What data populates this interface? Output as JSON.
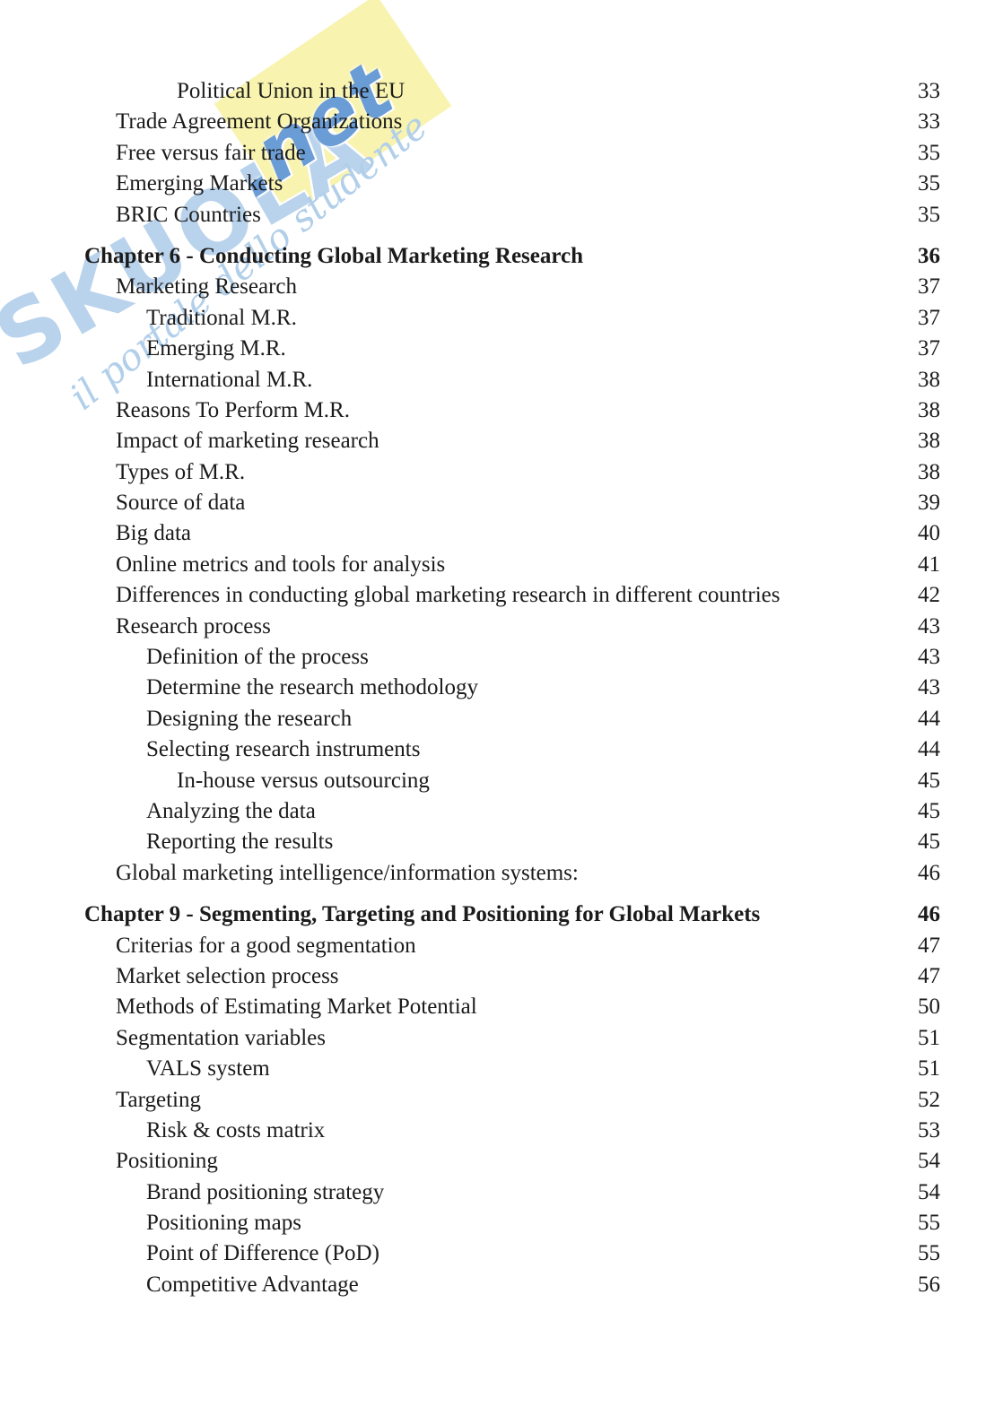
{
  "document": {
    "kind": "table-of-contents-page",
    "text_color": "#1b1b1b",
    "entries": [
      {
        "label": "Political Union in the EU",
        "page": "33",
        "level": 3,
        "chapter": false
      },
      {
        "label": "Trade Agreement Organizations",
        "page": "33",
        "level": 1,
        "chapter": false
      },
      {
        "label": "Free versus fair trade",
        "page": "35",
        "level": 1,
        "chapter": false
      },
      {
        "label": "Emerging Markets",
        "page": "35",
        "level": 1,
        "chapter": false
      },
      {
        "label": "BRIC Countries",
        "page": "35",
        "level": 1,
        "chapter": false
      },
      {
        "label": "Chapter 6 - Conducting Global Marketing Research",
        "page": "36",
        "level": 0,
        "chapter": true
      },
      {
        "label": "Marketing Research",
        "page": "37",
        "level": 1,
        "chapter": false
      },
      {
        "label": "Traditional M.R.",
        "page": "37",
        "level": 2,
        "chapter": false
      },
      {
        "label": "Emerging M.R.",
        "page": "37",
        "level": 2,
        "chapter": false
      },
      {
        "label": "International M.R.",
        "page": "38",
        "level": 2,
        "chapter": false
      },
      {
        "label": "Reasons To Perform M.R.",
        "page": "38",
        "level": 1,
        "chapter": false
      },
      {
        "label": "Impact of marketing research",
        "page": "38",
        "level": 1,
        "chapter": false
      },
      {
        "label": "Types of M.R.",
        "page": "38",
        "level": 1,
        "chapter": false
      },
      {
        "label": "Source of data",
        "page": "39",
        "level": 1,
        "chapter": false
      },
      {
        "label": "Big data",
        "page": "40",
        "level": 1,
        "chapter": false
      },
      {
        "label": "Online metrics and tools for analysis",
        "page": "41",
        "level": 1,
        "chapter": false
      },
      {
        "label": "Differences in conducting global marketing research in different countries",
        "page": "42",
        "level": 1,
        "chapter": false
      },
      {
        "label": "Research process",
        "page": "43",
        "level": 1,
        "chapter": false
      },
      {
        "label": "Definition of the process",
        "page": "43",
        "level": 2,
        "chapter": false
      },
      {
        "label": "Determine the research methodology",
        "page": "43",
        "level": 2,
        "chapter": false
      },
      {
        "label": "Designing the research",
        "page": "44",
        "level": 2,
        "chapter": false
      },
      {
        "label": "Selecting research instruments",
        "page": "44",
        "level": 2,
        "chapter": false
      },
      {
        "label": "In-house versus outsourcing",
        "page": "45",
        "level": 3,
        "chapter": false
      },
      {
        "label": "Analyzing the data",
        "page": "45",
        "level": 2,
        "chapter": false
      },
      {
        "label": "Reporting the results",
        "page": "45",
        "level": 2,
        "chapter": false
      },
      {
        "label": "Global marketing intelligence/information systems:",
        "page": "46",
        "level": 1,
        "chapter": false
      },
      {
        "label": "Chapter 9 - Segmenting, Targeting and Positioning for Global Markets",
        "page": "46",
        "level": 0,
        "chapter": true
      },
      {
        "label": "Criterias for a good segmentation",
        "page": "47",
        "level": 1,
        "chapter": false
      },
      {
        "label": "Market selection process",
        "page": "47",
        "level": 1,
        "chapter": false
      },
      {
        "label": "Methods of Estimating Market Potential",
        "page": "50",
        "level": 1,
        "chapter": false
      },
      {
        "label": "Segmentation variables",
        "page": "51",
        "level": 1,
        "chapter": false
      },
      {
        "label": "VALS system",
        "page": "51",
        "level": 2,
        "chapter": false
      },
      {
        "label": "Targeting",
        "page": "52",
        "level": 1,
        "chapter": false
      },
      {
        "label": "Risk & costs matrix",
        "page": "53",
        "level": 2,
        "chapter": false
      },
      {
        "label": "Positioning",
        "page": "54",
        "level": 1,
        "chapter": false
      },
      {
        "label": "Brand positioning strategy",
        "page": "54",
        "level": 2,
        "chapter": false
      },
      {
        "label": "Positioning maps",
        "page": "55",
        "level": 2,
        "chapter": false
      },
      {
        "label": "Point of Difference (PoD)",
        "page": "55",
        "level": 2,
        "chapter": false
      },
      {
        "label": "Competitive Advantage",
        "page": "56",
        "level": 2,
        "chapter": false
      }
    ]
  },
  "watermark": {
    "brand": "SKUOLA",
    "tld": ".net",
    "script_text": "il portale dello studente",
    "colors": {
      "brand_blue_light": "#b9d3ec",
      "net_blue": "#6a9cd6",
      "script_blue": "#b2cfea",
      "yellow": "#f8f3ae"
    }
  }
}
